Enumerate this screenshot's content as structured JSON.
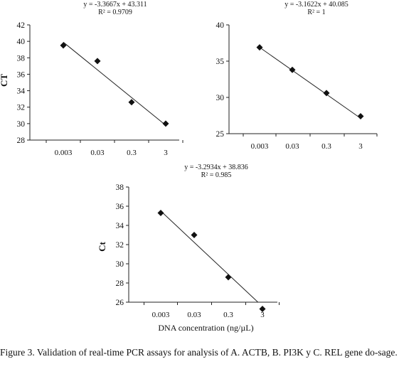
{
  "chart_data": [
    {
      "type": "scatter",
      "equation": "y = -3.3667x + 43.311",
      "r2_label": "R² = 0.9709",
      "ylabel": "CT",
      "xlabel": "",
      "categories": [
        "0.003",
        "0.03",
        "0.3",
        "3"
      ],
      "values": [
        39.5,
        37.6,
        32.6,
        30.0
      ],
      "trendline": [
        39.9,
        36.6,
        33.2,
        29.8
      ],
      "ylim": [
        28,
        42
      ],
      "yticks": [
        "28",
        "30",
        "32",
        "34",
        "36",
        "38",
        "40",
        "42"
      ]
    },
    {
      "type": "scatter",
      "equation": "y = -3.1622x + 40.085",
      "r2_label": "R² = 1",
      "ylabel": "",
      "xlabel": "",
      "categories": [
        "0.003",
        "0.03",
        "0.3",
        "3"
      ],
      "values": [
        36.9,
        33.8,
        30.6,
        27.4
      ],
      "trendline": [
        36.9,
        33.8,
        30.6,
        27.4
      ],
      "ylim": [
        25,
        40
      ],
      "yticks": [
        "25",
        "30",
        "35",
        "40"
      ]
    },
    {
      "type": "scatter",
      "equation": "y = -3.2934x + 38.836",
      "r2_label": "R² = 0.985",
      "ylabel": "Ct",
      "xlabel": "DNA concentration (ng/µL)",
      "categories": [
        "0.003",
        "0.03",
        "0.3",
        "3"
      ],
      "values": [
        35.3,
        33.0,
        28.6,
        25.3
      ],
      "trendline": [
        35.5,
        32.2,
        28.9,
        25.7
      ],
      "ylim": [
        26,
        38
      ],
      "yticks": [
        "26",
        "28",
        "30",
        "32",
        "34",
        "36",
        "38"
      ]
    }
  ],
  "caption": "Figure 3. Validation of real-time PCR assays for analysis of A. ACTB, B. PI3K y C. REL gene do-sage."
}
